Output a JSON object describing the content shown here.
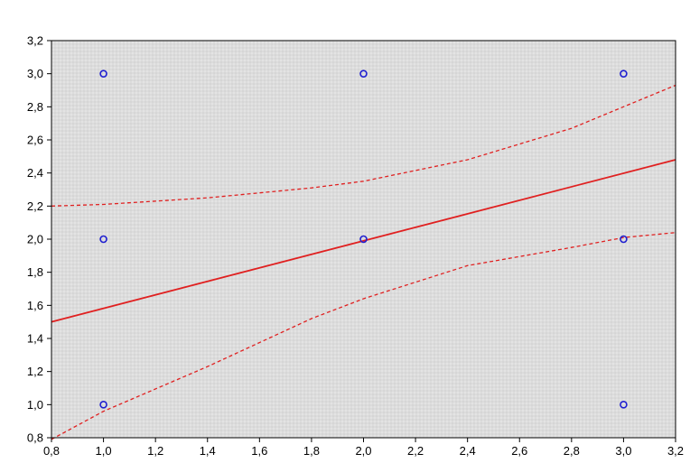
{
  "chart_data": {
    "type": "scatter",
    "title": "",
    "xlabel": "",
    "ylabel": "",
    "xlim": [
      0.8,
      3.2
    ],
    "ylim": [
      0.8,
      3.2
    ],
    "grid": true,
    "legend": "none",
    "x_ticks": [
      "0,8",
      "1,0",
      "1,2",
      "1,4",
      "1,6",
      "1,8",
      "2,0",
      "2,2",
      "2,4",
      "2,6",
      "2,8",
      "3,0",
      "3,2"
    ],
    "y_ticks": [
      "0,8",
      "1,0",
      "1,2",
      "1,4",
      "1,6",
      "1,8",
      "2,0",
      "2,2",
      "2,4",
      "2,6",
      "2,8",
      "3,0",
      "3,2"
    ],
    "x_tick_values": [
      0.8,
      1.0,
      1.2,
      1.4,
      1.6,
      1.8,
      2.0,
      2.2,
      2.4,
      2.6,
      2.8,
      3.0,
      3.2
    ],
    "y_tick_values": [
      0.8,
      1.0,
      1.2,
      1.4,
      1.6,
      1.8,
      2.0,
      2.2,
      2.4,
      2.6,
      2.8,
      3.0,
      3.2
    ],
    "points": [
      {
        "x": 1.0,
        "y": 3.0
      },
      {
        "x": 1.0,
        "y": 2.0
      },
      {
        "x": 1.0,
        "y": 1.0
      },
      {
        "x": 2.0,
        "y": 3.0
      },
      {
        "x": 2.0,
        "y": 2.0
      },
      {
        "x": 3.0,
        "y": 3.0
      },
      {
        "x": 3.0,
        "y": 2.0
      },
      {
        "x": 3.0,
        "y": 1.0
      }
    ],
    "fit_line": [
      {
        "x": 0.8,
        "y": 1.5
      },
      {
        "x": 3.2,
        "y": 2.48
      }
    ],
    "upper_band": [
      {
        "x": 0.8,
        "y": 2.2
      },
      {
        "x": 1.0,
        "y": 2.21
      },
      {
        "x": 1.4,
        "y": 2.25
      },
      {
        "x": 1.8,
        "y": 2.31
      },
      {
        "x": 2.0,
        "y": 2.35
      },
      {
        "x": 2.4,
        "y": 2.48
      },
      {
        "x": 2.8,
        "y": 2.67
      },
      {
        "x": 3.0,
        "y": 2.8
      },
      {
        "x": 3.2,
        "y": 2.93
      }
    ],
    "lower_band": [
      {
        "x": 0.8,
        "y": 0.79
      },
      {
        "x": 1.0,
        "y": 0.96
      },
      {
        "x": 1.4,
        "y": 1.23
      },
      {
        "x": 1.8,
        "y": 1.52
      },
      {
        "x": 2.0,
        "y": 1.64
      },
      {
        "x": 2.4,
        "y": 1.84
      },
      {
        "x": 2.8,
        "y": 1.95
      },
      {
        "x": 3.0,
        "y": 2.01
      },
      {
        "x": 3.2,
        "y": 2.04
      }
    ],
    "colors": {
      "points": "#1f1fd0",
      "fit": "#e02020",
      "band": "#e02020",
      "plot_background": "#e3e3e3",
      "grid": "#b5b5b5"
    }
  }
}
